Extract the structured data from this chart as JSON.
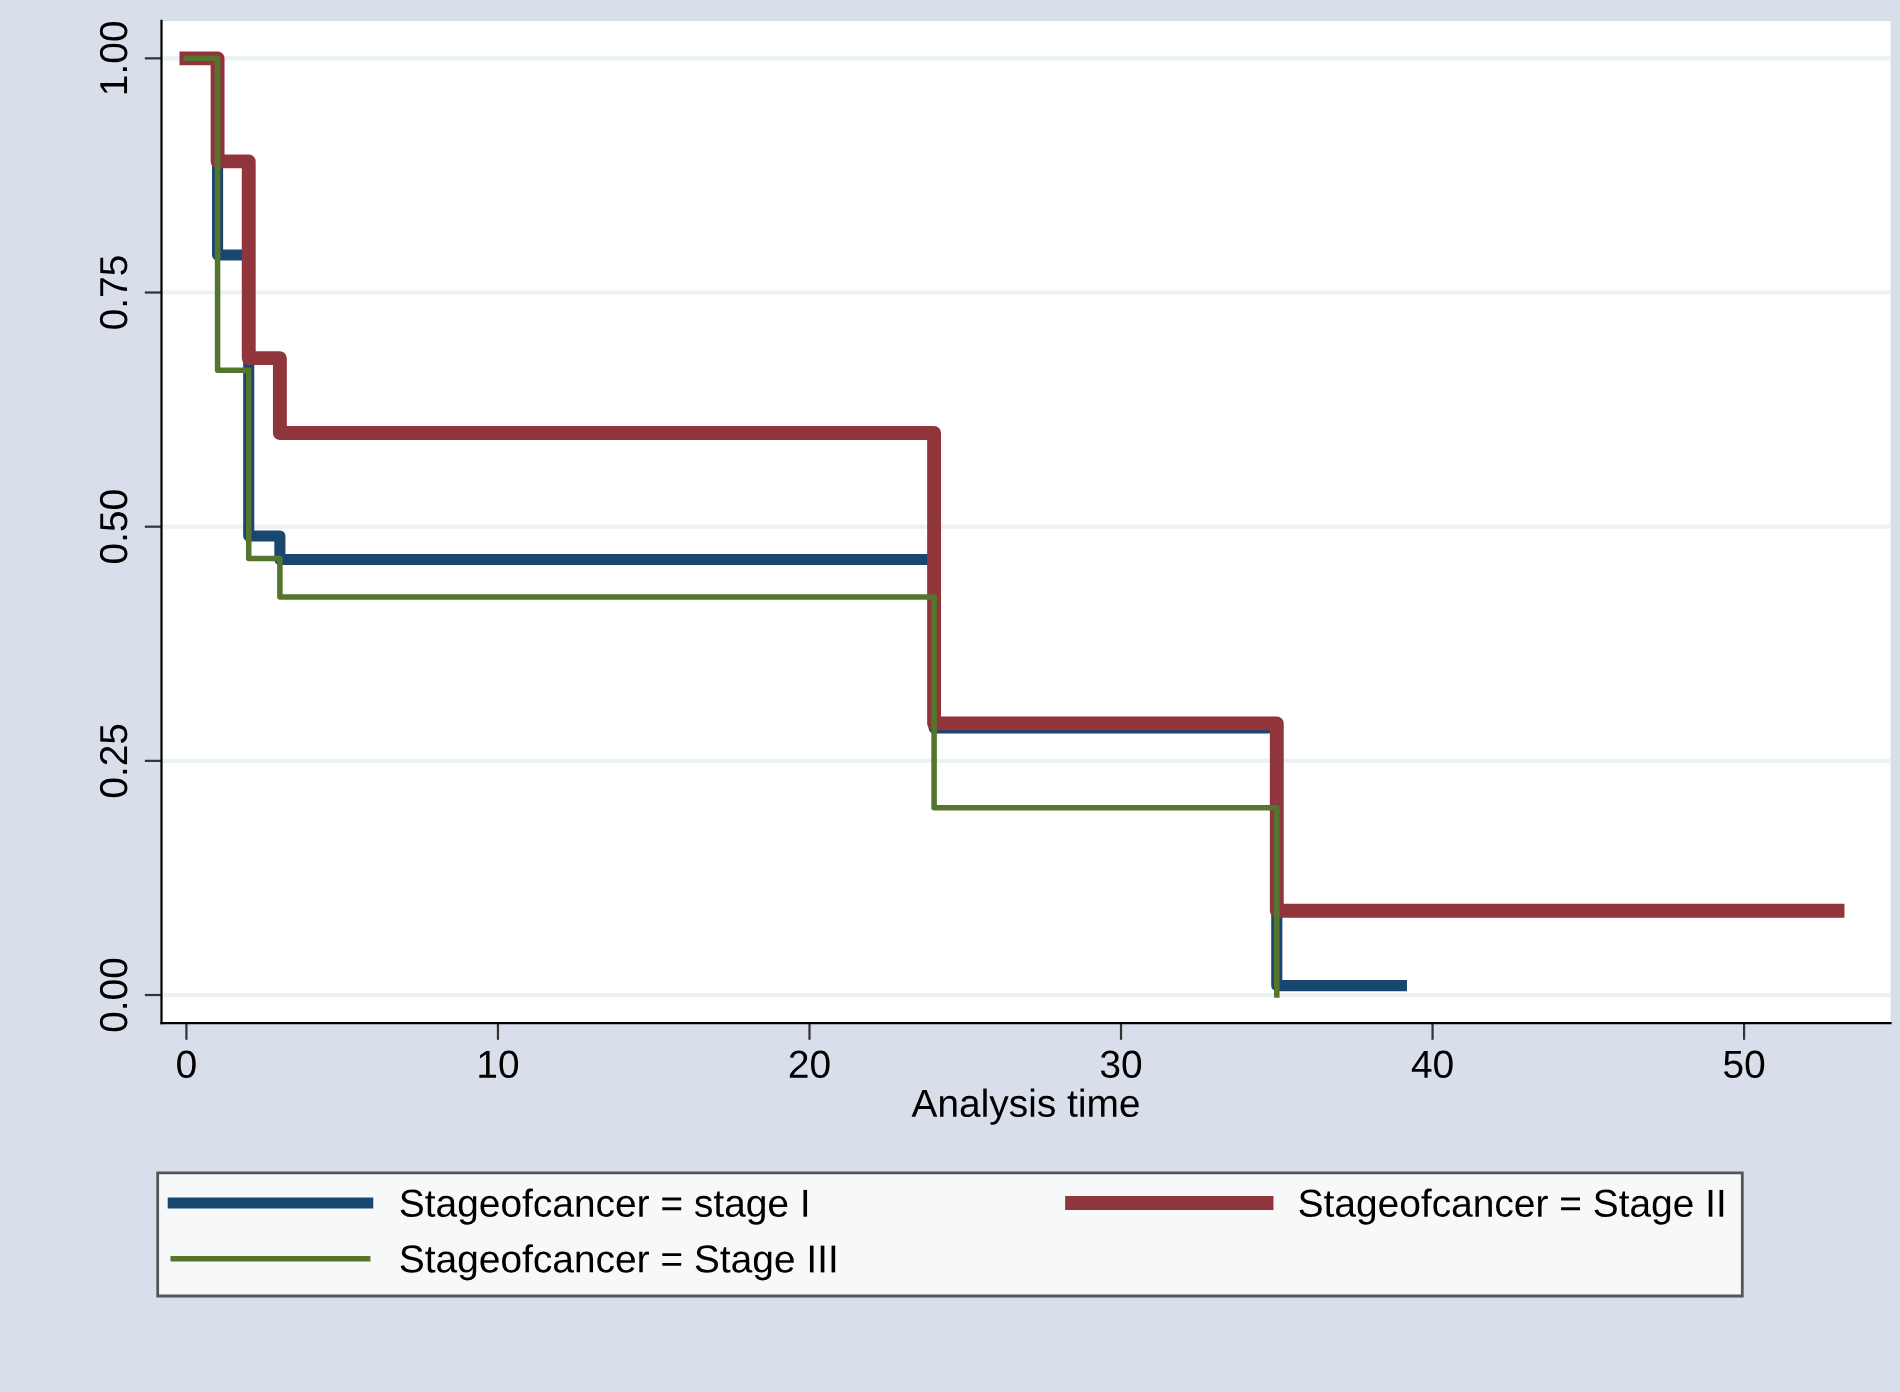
{
  "chart_data": {
    "type": "step",
    "xlabel": "Analysis time",
    "series": [
      {
        "name": "Stageofcancer = stage I",
        "color": "#1a476f",
        "x": [
          0,
          1,
          2,
          3,
          24,
          35,
          39
        ],
        "values": [
          1.0,
          0.79,
          0.49,
          0.465,
          0.285,
          0.01,
          0.01
        ]
      },
      {
        "name": "Stageofcancer = Stage II",
        "color": "#90353b",
        "x": [
          0,
          1,
          2,
          3,
          24,
          35,
          53
        ],
        "values": [
          1.0,
          0.89,
          0.68,
          0.6,
          0.29,
          0.09,
          0.09
        ]
      },
      {
        "name": "Stageofcancer = Stage III",
        "color": "#55752f",
        "x": [
          0,
          1,
          2,
          3,
          24,
          35
        ],
        "values": [
          1.0,
          0.667,
          0.466,
          0.425,
          0.2,
          0.0
        ]
      }
    ],
    "xlim": [
      -0.8,
      54.7
    ],
    "ylim": [
      -0.03,
      1.04
    ],
    "xticks": [
      0,
      10,
      20,
      30,
      40,
      50
    ],
    "yticks": [
      {
        "value": 0,
        "label": "0.00"
      },
      {
        "value": 0.25,
        "label": "0.25"
      },
      {
        "value": 0.5,
        "label": "0.50"
      },
      {
        "value": 0.75,
        "label": "0.75"
      },
      {
        "value": 1,
        "label": "1.00"
      }
    ],
    "grid": "y",
    "legend": "bottom"
  }
}
